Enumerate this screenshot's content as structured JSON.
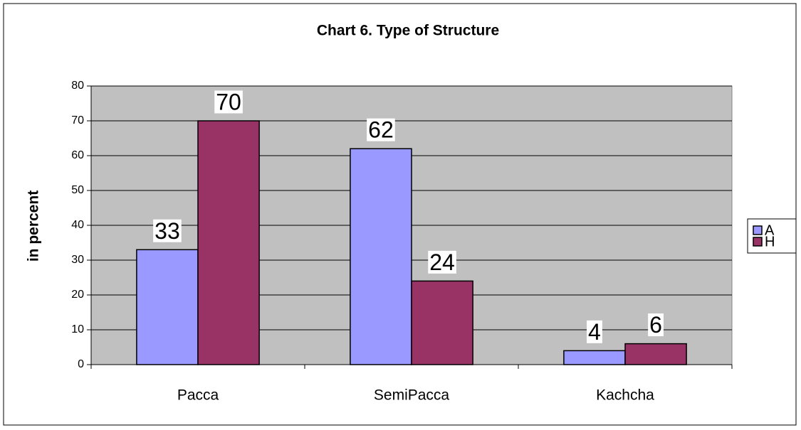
{
  "chart_data": {
    "type": "bar",
    "title": "Chart 6. Type of Structure",
    "y_label": "in percent",
    "categories": [
      "Pacca",
      "SemiPacca",
      "Kachcha"
    ],
    "series": [
      {
        "name": "A",
        "color": "#9999ff",
        "values": [
          33,
          62,
          4
        ]
      },
      {
        "name": "H",
        "color": "#993366",
        "values": [
          70,
          24,
          6
        ]
      }
    ],
    "ylim": [
      0,
      80
    ],
    "yticks": [
      0,
      10,
      20,
      30,
      40,
      50,
      60,
      70,
      80
    ],
    "grid": true,
    "legend": "right",
    "plot_background": "#c0c0c0"
  }
}
